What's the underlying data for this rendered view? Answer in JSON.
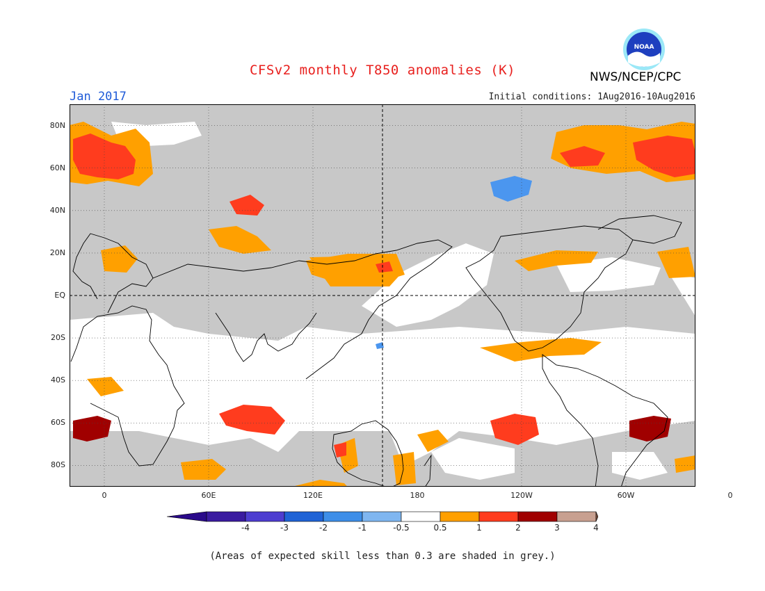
{
  "title": "CFSv2 monthly T850 anomalies (K)",
  "month": "Jan 2017",
  "initial_conditions": "Initial conditions: 1Aug2016-10Aug2016",
  "agency": "NWS/NCEP/CPC",
  "logo_text": "NOAA",
  "footnote": "(Areas of expected skill less than 0.3 are shaded in grey.)",
  "map": {
    "lon_range": [
      -20,
      340
    ],
    "lat_range": [
      -90,
      90
    ],
    "lat_ticks": [
      {
        "lat": 80,
        "label": "80N"
      },
      {
        "lat": 60,
        "label": "60N"
      },
      {
        "lat": 40,
        "label": "40N"
      },
      {
        "lat": 20,
        "label": "20N"
      },
      {
        "lat": 0,
        "label": "EQ"
      },
      {
        "lat": -20,
        "label": "20S"
      },
      {
        "lat": -40,
        "label": "40S"
      },
      {
        "lat": -60,
        "label": "60S"
      },
      {
        "lat": -80,
        "label": "80S"
      }
    ],
    "lon_ticks": [
      {
        "lon": 0,
        "label": "0"
      },
      {
        "lon": 60,
        "label": "60E"
      },
      {
        "lon": 120,
        "label": "120E"
      },
      {
        "lon": 180,
        "label": "180"
      },
      {
        "lon": 240,
        "label": "120W"
      },
      {
        "lon": 300,
        "label": "60W"
      },
      {
        "lon": 360,
        "label": "0"
      }
    ],
    "colors": {
      "grey": "#c8c8c8",
      "white": "#ffffff",
      "orange": "#ffa000",
      "red": "#ff3c1e",
      "darkred": "#a00000",
      "lightblue": "#4b96ef",
      "coast": "#000000"
    },
    "grey_note": "Areas of expected skill less than 0.3"
  },
  "colorbar": {
    "labels": [
      "-4",
      "-3",
      "-2",
      "-1",
      "-0.5",
      "0.5",
      "1",
      "2",
      "3",
      "4"
    ],
    "colors": [
      "#3a1ba0",
      "#4d3dd0",
      "#1f63d6",
      "#3d8ee8",
      "#7fb6f0",
      "#ffffff",
      "#ffa000",
      "#ff3c1e",
      "#a00000",
      "#c8a090"
    ],
    "end_low": "#2a0a8a",
    "end_high": "#7a5040"
  }
}
